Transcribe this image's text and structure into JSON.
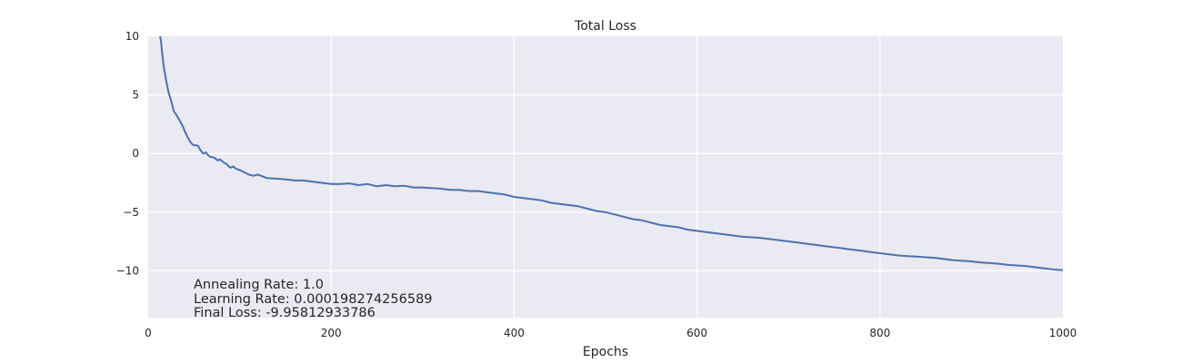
{
  "chart_data": {
    "type": "line",
    "title": "Total Loss",
    "xlabel": "Epochs",
    "ylabel": "",
    "xlim": [
      0,
      1000
    ],
    "ylim": [
      -14,
      10
    ],
    "grid": true,
    "x_ticks": [
      0,
      200,
      400,
      600,
      800,
      1000
    ],
    "y_ticks": [
      10,
      5,
      0,
      -5,
      -10
    ],
    "x_tick_labels": [
      "0",
      "200",
      "400",
      "600",
      "800",
      "1000"
    ],
    "y_tick_labels": [
      "10",
      "5",
      "0",
      "−5",
      "−10"
    ],
    "colors": {
      "background": "#eaeaf2",
      "grid": "#ffffff",
      "line": "#4c72b0"
    },
    "series": [
      {
        "x": [
          13,
          14,
          15,
          17,
          20,
          22,
          25,
          28,
          30,
          33,
          36,
          38,
          40,
          43,
          46,
          48,
          50,
          53,
          55,
          57,
          60,
          63,
          65,
          68,
          70,
          73,
          76,
          78,
          80,
          83,
          86,
          88,
          90,
          93,
          96,
          100,
          105,
          110,
          115,
          120,
          130,
          140,
          150,
          160,
          170,
          180,
          190,
          200,
          210,
          220,
          230,
          240,
          250,
          260,
          270,
          280,
          290,
          300,
          310,
          320,
          330,
          340,
          350,
          360,
          370,
          380,
          390,
          400,
          410,
          420,
          430,
          440,
          450,
          460,
          470,
          480,
          490,
          500,
          510,
          520,
          530,
          540,
          550,
          560,
          570,
          580,
          590,
          600,
          610,
          620,
          630,
          640,
          650,
          660,
          670,
          680,
          690,
          700,
          710,
          720,
          730,
          740,
          750,
          760,
          770,
          780,
          790,
          800,
          810,
          820,
          830,
          840,
          850,
          860,
          870,
          880,
          890,
          900,
          910,
          920,
          930,
          940,
          950,
          960,
          970,
          980,
          990,
          1000
        ],
        "values": [
          10.0,
          9.6,
          8.7,
          7.4,
          6.1,
          5.3,
          4.5,
          3.6,
          3.4,
          3.0,
          2.6,
          2.3,
          1.9,
          1.4,
          1.0,
          0.8,
          0.7,
          0.7,
          0.6,
          0.3,
          0.0,
          0.1,
          -0.1,
          -0.3,
          -0.3,
          -0.4,
          -0.6,
          -0.5,
          -0.6,
          -0.8,
          -0.9,
          -1.1,
          -1.2,
          -1.1,
          -1.3,
          -1.4,
          -1.6,
          -1.8,
          -1.9,
          -1.8,
          -2.1,
          -2.15,
          -2.2,
          -2.3,
          -2.3,
          -2.4,
          -2.5,
          -2.6,
          -2.6,
          -2.55,
          -2.7,
          -2.6,
          -2.8,
          -2.7,
          -2.8,
          -2.75,
          -2.9,
          -2.9,
          -2.95,
          -3.0,
          -3.1,
          -3.1,
          -3.2,
          -3.2,
          -3.3,
          -3.4,
          -3.5,
          -3.7,
          -3.8,
          -3.9,
          -4.0,
          -4.2,
          -4.3,
          -4.4,
          -4.5,
          -4.7,
          -4.9,
          -5.0,
          -5.2,
          -5.4,
          -5.6,
          -5.7,
          -5.9,
          -6.1,
          -6.2,
          -6.3,
          -6.5,
          -6.6,
          -6.7,
          -6.8,
          -6.9,
          -7.0,
          -7.1,
          -7.15,
          -7.2,
          -7.3,
          -7.4,
          -7.5,
          -7.6,
          -7.7,
          -7.8,
          -7.9,
          -8.0,
          -8.1,
          -8.2,
          -8.3,
          -8.4,
          -8.5,
          -8.6,
          -8.7,
          -8.75,
          -8.8,
          -8.85,
          -8.9,
          -9.0,
          -9.1,
          -9.15,
          -9.2,
          -9.3,
          -9.35,
          -9.4,
          -9.5,
          -9.55,
          -9.6,
          -9.7,
          -9.8,
          -9.9,
          -9.96
        ]
      }
    ],
    "annotations": [
      "Annealing Rate: 1.0",
      "Learning Rate: 0.000198274256589",
      "Final Loss: -9.95812933786"
    ]
  }
}
